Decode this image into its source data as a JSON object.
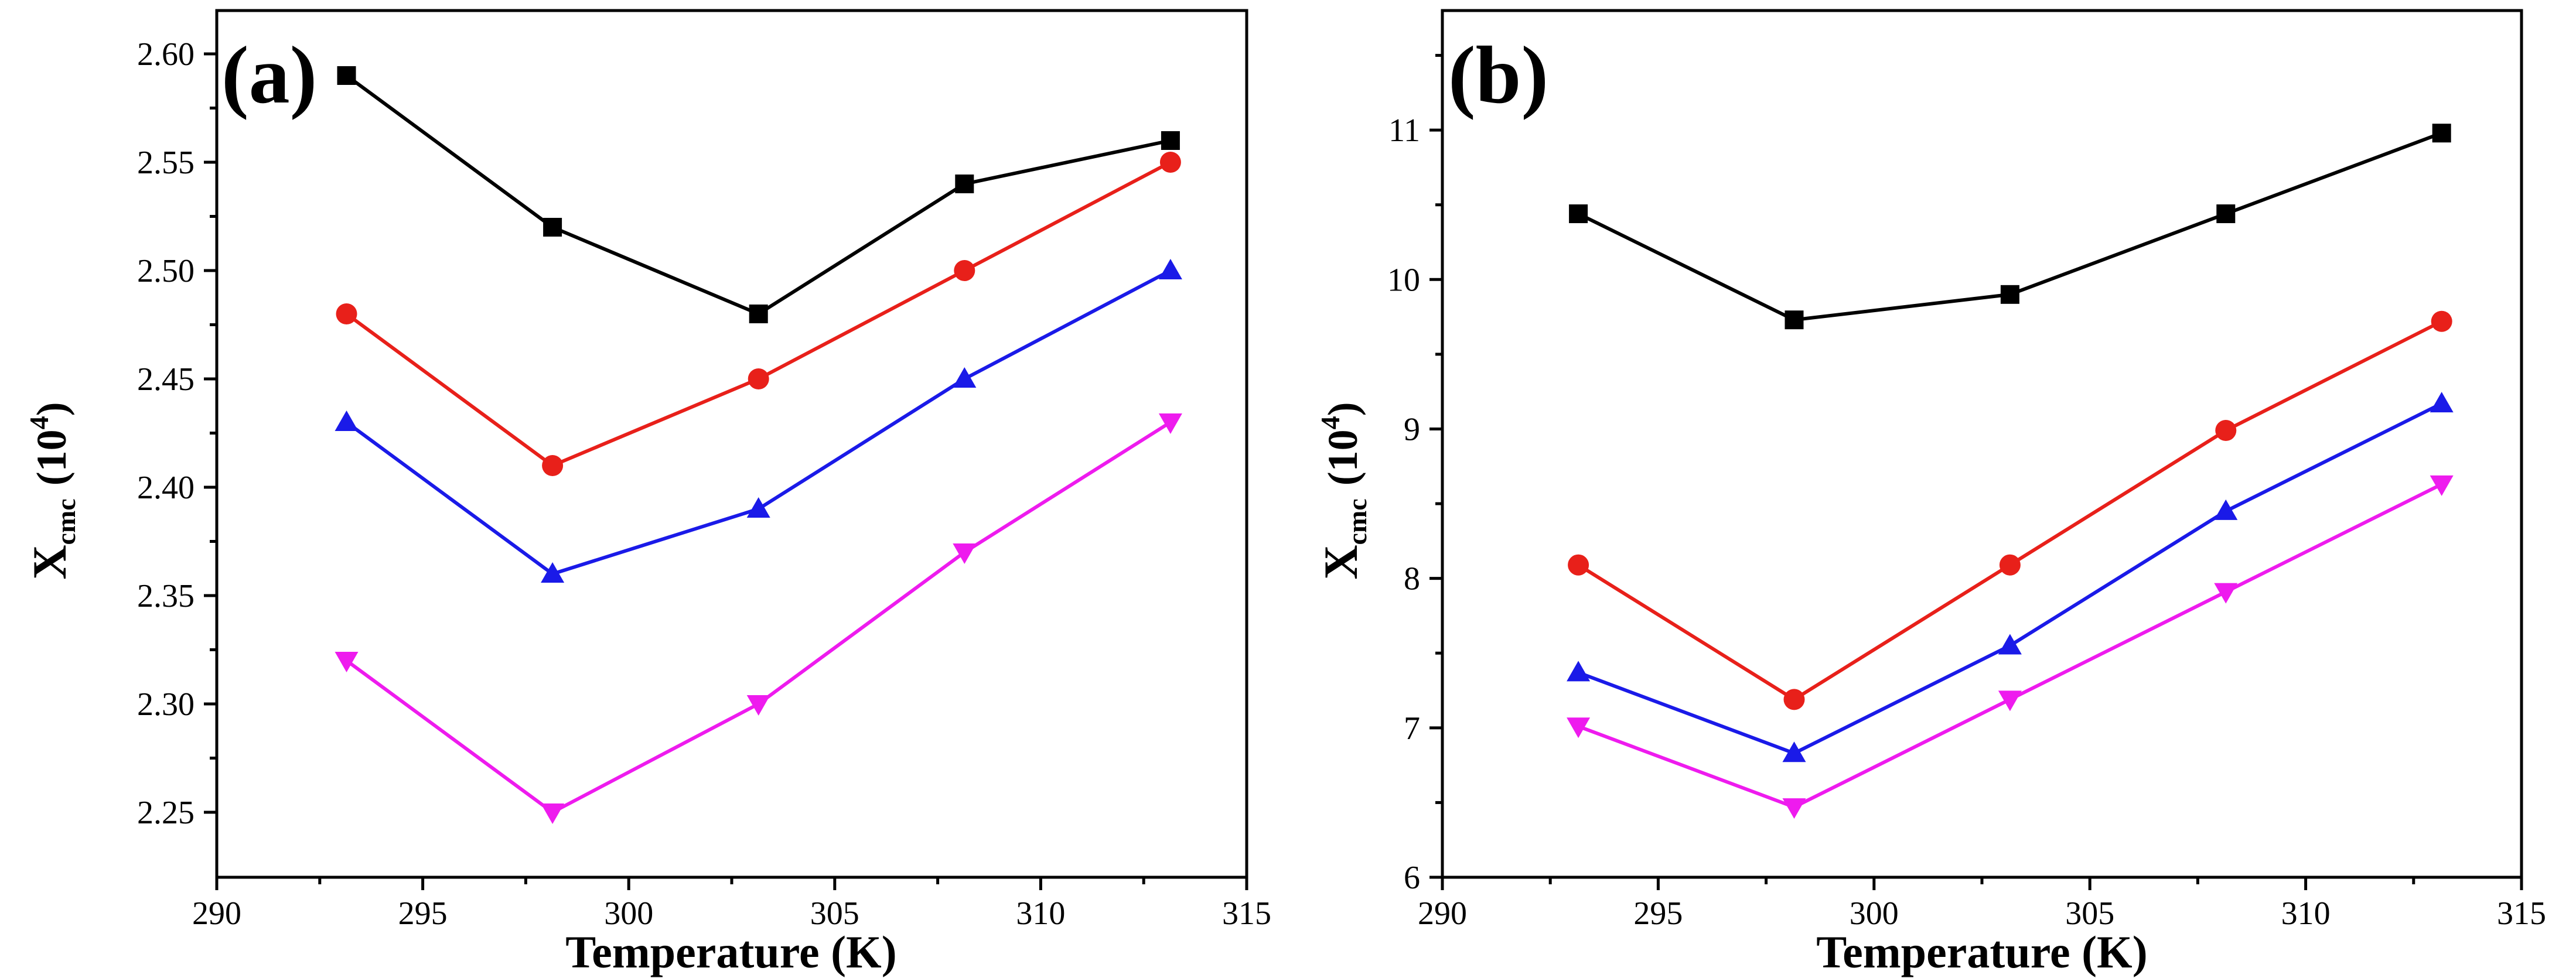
{
  "chart_data": [
    {
      "type": "line",
      "panel_label": "(a)",
      "xlabel": "Temperature (K)",
      "ylabel": {
        "symbol": "X",
        "subscript": "cmc",
        "unit_prefix": "(10",
        "exponent": "4",
        "unit_suffix": ")"
      },
      "xlim": [
        290,
        315
      ],
      "ylim": [
        2.22,
        2.62
      ],
      "xticks": [
        290,
        295,
        300,
        305,
        310,
        315
      ],
      "xtick_labels": [
        "290",
        "295",
        "300",
        "305",
        "310",
        "315"
      ],
      "yticks": [
        2.25,
        2.3,
        2.35,
        2.4,
        2.45,
        2.5,
        2.55,
        2.6
      ],
      "ytick_labels": [
        "2.25",
        "2.30",
        "2.35",
        "2.40",
        "2.45",
        "2.50",
        "2.55",
        "2.60"
      ],
      "x": [
        293.15,
        298.15,
        303.15,
        308.15,
        313.15
      ],
      "series": [
        {
          "name": "black-squares",
          "color": "#000000",
          "marker": "square",
          "values": [
            2.59,
            2.52,
            2.48,
            2.54,
            2.56
          ]
        },
        {
          "name": "red-circles",
          "color": "#e8201a",
          "marker": "circle",
          "values": [
            2.48,
            2.41,
            2.45,
            2.5,
            2.55
          ]
        },
        {
          "name": "blue-triangles",
          "color": "#1a1ae8",
          "marker": "triangle-up",
          "values": [
            2.43,
            2.36,
            2.39,
            2.45,
            2.5
          ]
        },
        {
          "name": "magenta-triangles",
          "color": "#ee1bee",
          "marker": "triangle-down",
          "values": [
            2.32,
            2.25,
            2.3,
            2.37,
            2.43
          ]
        }
      ]
    },
    {
      "type": "line",
      "panel_label": "(b)",
      "xlabel": "Temperature (K)",
      "ylabel": {
        "symbol": "X",
        "subscript": "cmc",
        "unit_prefix": "(10",
        "exponent": "4",
        "unit_suffix": ")"
      },
      "xlim": [
        290,
        315
      ],
      "ylim": [
        6,
        11.8
      ],
      "xticks": [
        290,
        295,
        300,
        305,
        310,
        315
      ],
      "xtick_labels": [
        "290",
        "295",
        "300",
        "305",
        "310",
        "315"
      ],
      "yticks": [
        6,
        7,
        8,
        9,
        10,
        11
      ],
      "ytick_labels": [
        "6",
        "7",
        "8",
        "9",
        "10",
        "11"
      ],
      "x": [
        293.15,
        298.15,
        303.15,
        308.15,
        313.15
      ],
      "series": [
        {
          "name": "black-squares",
          "color": "#000000",
          "marker": "square",
          "values": [
            10.44,
            9.73,
            9.9,
            10.44,
            10.98
          ]
        },
        {
          "name": "red-circles",
          "color": "#e8201a",
          "marker": "circle",
          "values": [
            8.09,
            7.19,
            8.09,
            8.99,
            9.72
          ]
        },
        {
          "name": "blue-triangles",
          "color": "#1a1ae8",
          "marker": "triangle-up",
          "values": [
            7.37,
            6.83,
            7.55,
            8.45,
            9.17
          ]
        },
        {
          "name": "magenta-triangles",
          "color": "#ee1bee",
          "marker": "triangle-down",
          "values": [
            7.01,
            6.47,
            7.19,
            7.91,
            8.63
          ]
        }
      ]
    }
  ]
}
